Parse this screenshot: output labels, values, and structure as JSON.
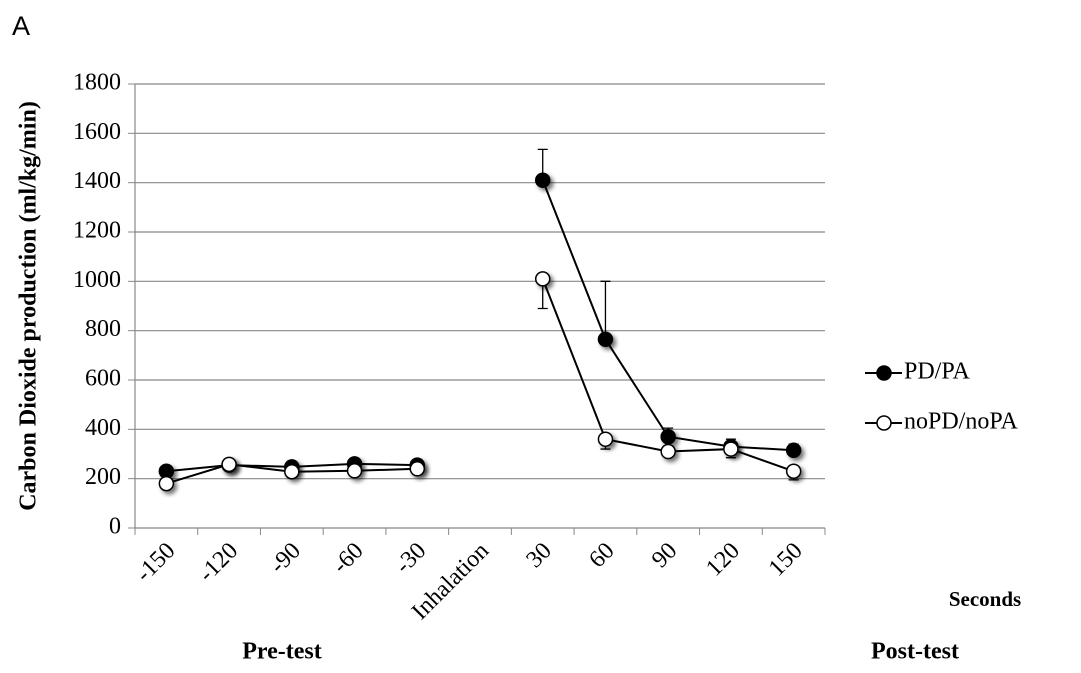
{
  "chart_data": {
    "type": "line",
    "panel_label": "A",
    "y_label": "Carbon Dioxide production (ml/kg/min)",
    "x_label": "Seconds",
    "group_labels": [
      "Pre-test",
      "Post-test"
    ],
    "categories": [
      "-150",
      "-120",
      "-90",
      "-60",
      "-30",
      "Inhalation",
      "30",
      "60",
      "90",
      "120",
      "150"
    ],
    "series": [
      {
        "name": "PD/PA",
        "color": "#000000",
        "marker_fill": "#000000",
        "values": [
          230,
          255,
          248,
          260,
          255,
          null,
          1410,
          765,
          370,
          330,
          315
        ],
        "errors": [
          15,
          10,
          15,
          15,
          15,
          null,
          125,
          235,
          35,
          30,
          25
        ],
        "error_direction": "up"
      },
      {
        "name": "noPD/noPA",
        "color": "#000000",
        "marker_fill": "#ffffff",
        "values": [
          180,
          258,
          228,
          232,
          240,
          null,
          1010,
          360,
          310,
          320,
          230
        ],
        "errors": [
          15,
          15,
          15,
          15,
          20,
          null,
          120,
          40,
          15,
          35,
          35
        ],
        "error_direction": "down"
      }
    ],
    "ylim": [
      0,
      1800
    ],
    "yticks": [
      0,
      200,
      400,
      600,
      800,
      1000,
      1200,
      1400,
      1600,
      1800
    ],
    "grid": true,
    "legend": "right"
  }
}
